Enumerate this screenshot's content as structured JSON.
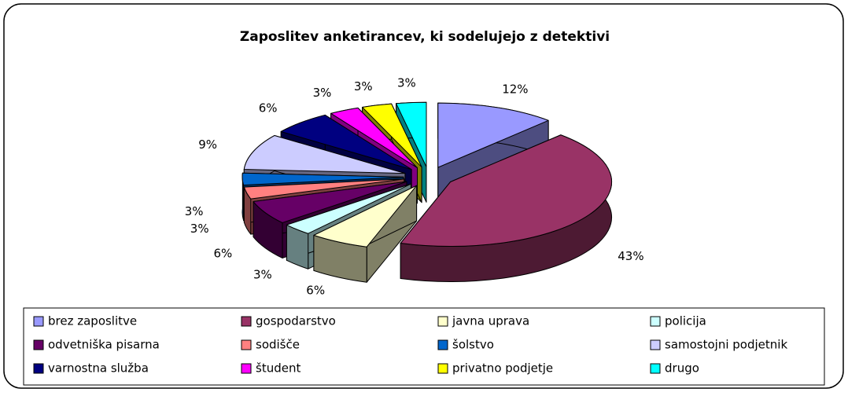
{
  "chart_data": {
    "type": "pie3d",
    "title": "Zaposlitev anketirancev, ki sodelujejo z detektivi",
    "categories": [
      "brez zaposlitve",
      "gospodarstvo",
      "javna uprava",
      "policija",
      "odvetniška pisarna",
      "sodišče",
      "šolstvo",
      "samostojni podjetnik",
      "varnostna služba",
      "študent",
      "privatno podjetje",
      "drugo"
    ],
    "values": [
      12,
      43,
      6,
      3,
      6,
      3,
      3,
      9,
      6,
      3,
      3,
      3
    ],
    "value_labels": [
      "12%",
      "43%",
      "6%",
      "3%",
      "6%",
      "3%",
      "3%",
      "9%",
      "6%",
      "3%",
      "3%",
      "3%"
    ],
    "colors": [
      "#9999ff",
      "#993366",
      "#ffffcc",
      "#ccffff",
      "#660066",
      "#ff8080",
      "#0066cc",
      "#ccccff",
      "#000080",
      "#ff00ff",
      "#ffff00",
      "#00ffff"
    ],
    "legend": "bottom"
  }
}
